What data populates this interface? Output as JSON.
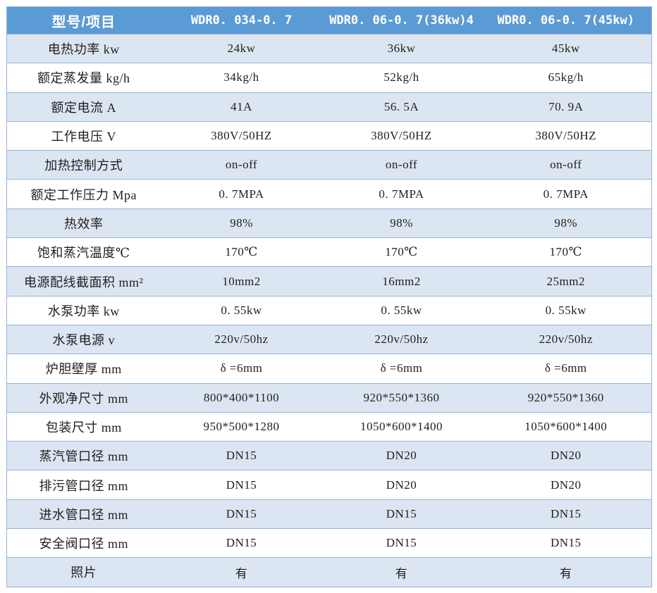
{
  "table": {
    "header": {
      "label": "型号/项目",
      "models": [
        "WDR0. 034-0. 7",
        "WDR0. 06-0. 7(36kw)4",
        "WDR0. 06-0. 7(45kw)"
      ]
    },
    "rows": [
      {
        "label": "电热功率 kw",
        "values": [
          "24kw",
          "36kw",
          "45kw"
        ]
      },
      {
        "label": "额定蒸发量 kg/h",
        "values": [
          "34kg/h",
          "52kg/h",
          "65kg/h"
        ]
      },
      {
        "label": "额定电流 A",
        "values": [
          "41A",
          "56. 5A",
          "70. 9A"
        ]
      },
      {
        "label": "工作电压 V",
        "values": [
          "380V/50HZ",
          "380V/50HZ",
          "380V/50HZ"
        ]
      },
      {
        "label": "加热控制方式",
        "values": [
          "on-off",
          "on-off",
          "on-off"
        ]
      },
      {
        "label": "额定工作压力 Mpa",
        "values": [
          "0. 7MPA",
          "0. 7MPA",
          "0. 7MPA"
        ]
      },
      {
        "label": "热效率",
        "values": [
          "98%",
          "98%",
          "98%"
        ]
      },
      {
        "label": "饱和蒸汽温度℃",
        "values": [
          "170℃",
          "170℃",
          "170℃"
        ]
      },
      {
        "label": "电源配线截面积 mm²",
        "values": [
          "10mm2",
          "16mm2",
          "25mm2"
        ]
      },
      {
        "label": "水泵功率 kw",
        "values": [
          "0. 55kw",
          "0. 55kw",
          "0. 55kw"
        ]
      },
      {
        "label": "水泵电源 v",
        "values": [
          "220v/50hz",
          "220v/50hz",
          "220v/50hz"
        ]
      },
      {
        "label": "炉胆壁厚 mm",
        "values": [
          "δ =6mm",
          "δ =6mm",
          "δ =6mm"
        ]
      },
      {
        "label": "外观净尺寸 mm",
        "values": [
          "800*400*1100",
          "920*550*1360",
          "920*550*1360"
        ]
      },
      {
        "label": "包装尺寸 mm",
        "values": [
          "950*500*1280",
          "1050*600*1400",
          "1050*600*1400"
        ]
      },
      {
        "label": "蒸汽管口径 mm",
        "values": [
          "DN15",
          "DN20",
          "DN20"
        ]
      },
      {
        "label": "排污管口径 mm",
        "values": [
          "DN15",
          "DN20",
          "DN20"
        ]
      },
      {
        "label": "进水管口径 mm",
        "values": [
          "DN15",
          "DN15",
          "DN15"
        ]
      },
      {
        "label": "安全阀口径 mm",
        "values": [
          "DN15",
          "DN15",
          "DN15"
        ]
      },
      {
        "label": "照片",
        "values": [
          "有",
          "有",
          "有"
        ]
      }
    ]
  },
  "colors": {
    "header_bg": "#5b9bd5",
    "row_alt_bg": "#dce6f2",
    "border": "#95b3d7",
    "header_text": "#ffffff",
    "body_text": "#1f1f1f"
  }
}
